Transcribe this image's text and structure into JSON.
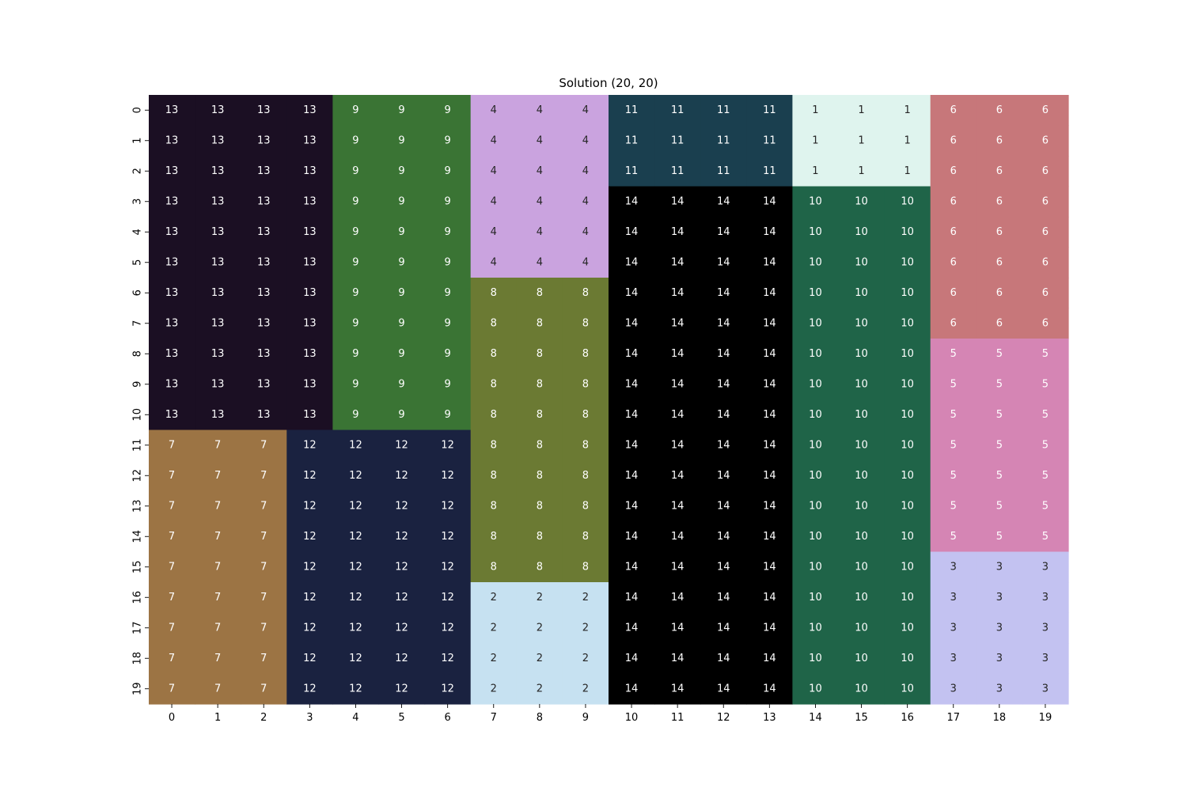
{
  "chart_data": {
    "type": "heatmap",
    "title": "Solution (20, 20)",
    "xlabel": "",
    "ylabel": "",
    "x_ticks": [
      "0",
      "1",
      "2",
      "3",
      "4",
      "5",
      "6",
      "7",
      "8",
      "9",
      "10",
      "11",
      "12",
      "13",
      "14",
      "15",
      "16",
      "17",
      "18",
      "19"
    ],
    "y_ticks": [
      "0",
      "1",
      "2",
      "3",
      "4",
      "5",
      "6",
      "7",
      "8",
      "9",
      "10",
      "11",
      "12",
      "13",
      "14",
      "15",
      "16",
      "17",
      "18",
      "19"
    ],
    "colorbar": false,
    "annotations": true,
    "grid": false,
    "value_colors": {
      "1": "#dff4ee",
      "2": "#c6e1f1",
      "3": "#c3c2f1",
      "4": "#caa3df",
      "5": "#d585b4",
      "6": "#c7777a",
      "7": "#9c7444",
      "8": "#6b7a33",
      "9": "#3a7434",
      "10": "#1f6448",
      "11": "#1a3f4f",
      "12": "#1a2240",
      "13": "#1b0f23",
      "14": "#000000"
    },
    "dark_text_values": [
      1,
      2,
      3,
      4
    ],
    "values": [
      [
        13,
        13,
        13,
        13,
        9,
        9,
        9,
        4,
        4,
        4,
        11,
        11,
        11,
        11,
        1,
        1,
        1,
        6,
        6,
        6
      ],
      [
        13,
        13,
        13,
        13,
        9,
        9,
        9,
        4,
        4,
        4,
        11,
        11,
        11,
        11,
        1,
        1,
        1,
        6,
        6,
        6
      ],
      [
        13,
        13,
        13,
        13,
        9,
        9,
        9,
        4,
        4,
        4,
        11,
        11,
        11,
        11,
        1,
        1,
        1,
        6,
        6,
        6
      ],
      [
        13,
        13,
        13,
        13,
        9,
        9,
        9,
        4,
        4,
        4,
        14,
        14,
        14,
        14,
        10,
        10,
        10,
        6,
        6,
        6
      ],
      [
        13,
        13,
        13,
        13,
        9,
        9,
        9,
        4,
        4,
        4,
        14,
        14,
        14,
        14,
        10,
        10,
        10,
        6,
        6,
        6
      ],
      [
        13,
        13,
        13,
        13,
        9,
        9,
        9,
        4,
        4,
        4,
        14,
        14,
        14,
        14,
        10,
        10,
        10,
        6,
        6,
        6
      ],
      [
        13,
        13,
        13,
        13,
        9,
        9,
        9,
        8,
        8,
        8,
        14,
        14,
        14,
        14,
        10,
        10,
        10,
        6,
        6,
        6
      ],
      [
        13,
        13,
        13,
        13,
        9,
        9,
        9,
        8,
        8,
        8,
        14,
        14,
        14,
        14,
        10,
        10,
        10,
        6,
        6,
        6
      ],
      [
        13,
        13,
        13,
        13,
        9,
        9,
        9,
        8,
        8,
        8,
        14,
        14,
        14,
        14,
        10,
        10,
        10,
        5,
        5,
        5
      ],
      [
        13,
        13,
        13,
        13,
        9,
        9,
        9,
        8,
        8,
        8,
        14,
        14,
        14,
        14,
        10,
        10,
        10,
        5,
        5,
        5
      ],
      [
        13,
        13,
        13,
        13,
        9,
        9,
        9,
        8,
        8,
        8,
        14,
        14,
        14,
        14,
        10,
        10,
        10,
        5,
        5,
        5
      ],
      [
        7,
        7,
        7,
        12,
        12,
        12,
        12,
        8,
        8,
        8,
        14,
        14,
        14,
        14,
        10,
        10,
        10,
        5,
        5,
        5
      ],
      [
        7,
        7,
        7,
        12,
        12,
        12,
        12,
        8,
        8,
        8,
        14,
        14,
        14,
        14,
        10,
        10,
        10,
        5,
        5,
        5
      ],
      [
        7,
        7,
        7,
        12,
        12,
        12,
        12,
        8,
        8,
        8,
        14,
        14,
        14,
        14,
        10,
        10,
        10,
        5,
        5,
        5
      ],
      [
        7,
        7,
        7,
        12,
        12,
        12,
        12,
        8,
        8,
        8,
        14,
        14,
        14,
        14,
        10,
        10,
        10,
        5,
        5,
        5
      ],
      [
        7,
        7,
        7,
        12,
        12,
        12,
        12,
        8,
        8,
        8,
        14,
        14,
        14,
        14,
        10,
        10,
        10,
        3,
        3,
        3
      ],
      [
        7,
        7,
        7,
        12,
        12,
        12,
        12,
        2,
        2,
        2,
        14,
        14,
        14,
        14,
        10,
        10,
        10,
        3,
        3,
        3
      ],
      [
        7,
        7,
        7,
        12,
        12,
        12,
        12,
        2,
        2,
        2,
        14,
        14,
        14,
        14,
        10,
        10,
        10,
        3,
        3,
        3
      ],
      [
        7,
        7,
        7,
        12,
        12,
        12,
        12,
        2,
        2,
        2,
        14,
        14,
        14,
        14,
        10,
        10,
        10,
        3,
        3,
        3
      ],
      [
        7,
        7,
        7,
        12,
        12,
        12,
        12,
        2,
        2,
        2,
        14,
        14,
        14,
        14,
        10,
        10,
        10,
        3,
        3,
        3
      ]
    ]
  }
}
